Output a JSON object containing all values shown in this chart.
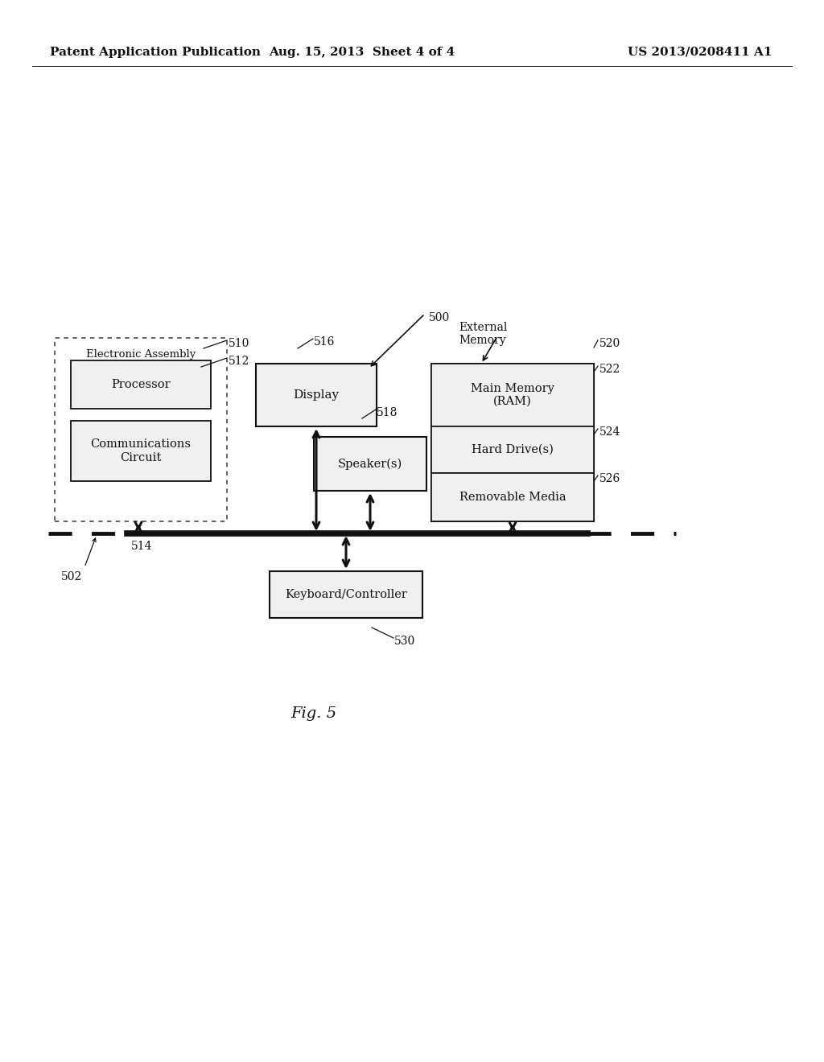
{
  "bg_color": "#ffffff",
  "text_color": "#111111",
  "header_left": "Patent Application Publication",
  "header_center": "Aug. 15, 2013  Sheet 4 of 4",
  "header_right": "US 2013/0208411 A1",
  "fig_label": "Fig. 5",
  "ref_500": "500",
  "ref_502": "502",
  "ref_510": "510",
  "ref_512": "512",
  "ref_514": "514",
  "ref_516": "516",
  "ref_518": "518",
  "ref_520": "520",
  "ref_522": "522",
  "ref_524": "524",
  "ref_526": "526",
  "ref_530": "530",
  "label_ea": "Electronic Assembly",
  "label_processor": "Processor",
  "label_comm": "Communications\nCircuit",
  "label_display": "Display",
  "label_speakers": "Speaker(s)",
  "label_ext_mem": "External\nMemory",
  "label_main_mem": "Main Memory\n(RAM)",
  "label_hard_drive": "Hard Drive(s)",
  "label_removable": "Removable Media",
  "label_keyboard": "Keyboard/Controller"
}
